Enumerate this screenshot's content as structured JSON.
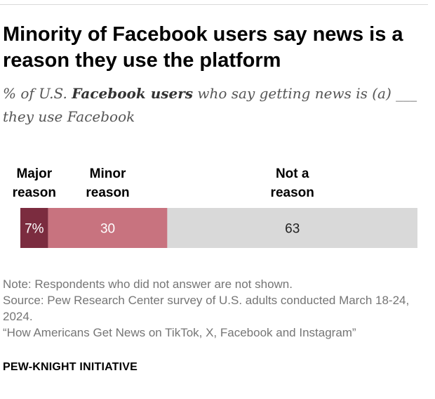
{
  "title": "Minority of Facebook users say news is a reason they use the platform",
  "subtitle": {
    "before": "% of U.S. ",
    "emphasis": "Facebook users",
    "after": " who say getting news is (a) ___ they use Facebook"
  },
  "notes": {
    "note": "Note: Respondents who did not answer are not shown.",
    "source": "Source: Pew Research Center survey of U.S. adults conducted March 18-24, 2024.",
    "report": "“How Americans Get News on TikTok, X, Facebook and Instagram”"
  },
  "brand": "PEW-KNIGHT INITIATIVE",
  "colors": {
    "major": "#7b2c3f",
    "minor": "#c8737f",
    "not": "#d9d9d9",
    "light_text": "#ffffff",
    "dark_text": "#222222"
  },
  "chart_data": {
    "type": "bar",
    "orientation": "horizontal-stacked",
    "xlim": [
      0,
      100
    ],
    "series": [
      {
        "name": "Major reason",
        "label_lines": [
          "Major",
          "reason"
        ],
        "value": 7,
        "display": "7%"
      },
      {
        "name": "Minor reason",
        "label_lines": [
          "Minor",
          "reason"
        ],
        "value": 30,
        "display": "30"
      },
      {
        "name": "Not a reason",
        "label_lines": [
          "Not a",
          "reason"
        ],
        "value": 63,
        "display": "63"
      }
    ]
  }
}
